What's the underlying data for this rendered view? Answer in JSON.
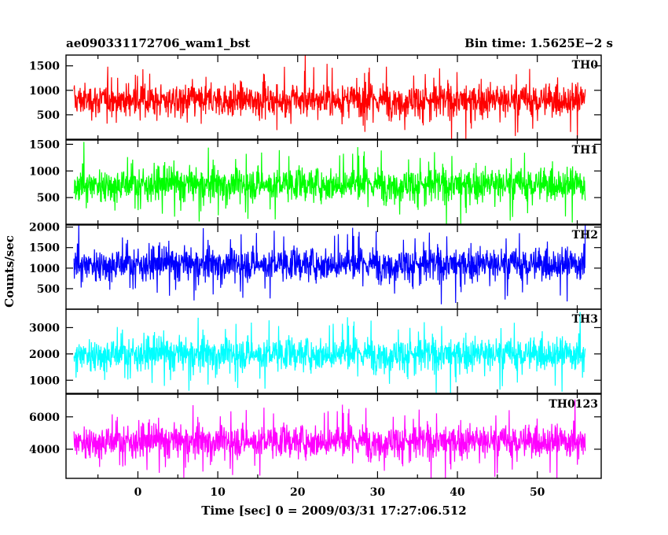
{
  "header": {
    "title": "ae090331172706_wam1_bst",
    "bin_time": "Bin time: 1.5625E−2 s"
  },
  "chart_data": {
    "type": "line",
    "xlabel": "Time [sec] 0 = 2009/03/31 17:27:06.512",
    "ylabel": "Counts/sec",
    "xlim": [
      -9,
      58
    ],
    "xticks": [
      "0",
      "10",
      "20",
      "30",
      "40",
      "50"
    ],
    "x_data_range": [
      -8,
      56
    ],
    "panels": [
      {
        "label": "TH0",
        "color": "#ff0000",
        "ylim": [
          0,
          1720
        ],
        "yticks": [
          "500",
          "1000",
          "1500"
        ],
        "mean": 800,
        "min_typical": 200,
        "max_typical": 1600
      },
      {
        "label": "TH1",
        "color": "#00ff00",
        "ylim": [
          0,
          1580
        ],
        "yticks": [
          "500",
          "1000",
          "1500"
        ],
        "mean": 750,
        "min_typical": 150,
        "max_typical": 1450
      },
      {
        "label": "TH2",
        "color": "#0000ff",
        "ylim": [
          0,
          2050
        ],
        "yticks": [
          "500",
          "1000",
          "1500",
          "2000"
        ],
        "mean": 1100,
        "min_typical": 300,
        "max_typical": 1950
      },
      {
        "label": "TH3",
        "color": "#00ffff",
        "ylim": [
          500,
          3700
        ],
        "yticks": [
          "1000",
          "2000",
          "3000"
        ],
        "mean": 2000,
        "min_typical": 800,
        "max_typical": 3400
      },
      {
        "label": "TH0123",
        "color": "#ff00ff",
        "ylim": [
          2200,
          7400
        ],
        "yticks": [
          "4000",
          "6000"
        ],
        "mean": 4500,
        "min_typical": 2600,
        "max_typical": 6800
      }
    ]
  }
}
